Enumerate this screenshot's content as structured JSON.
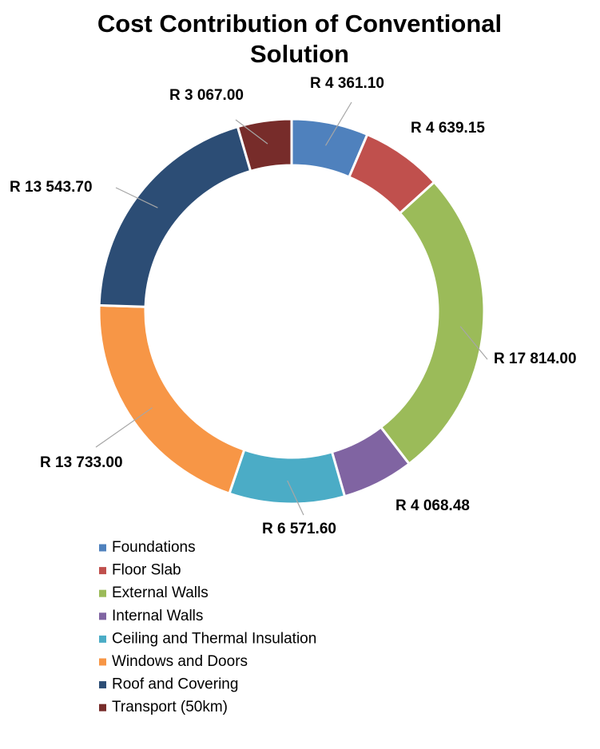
{
  "chart_data": {
    "type": "donut",
    "title": "Cost Contribution of Conventional Solution",
    "categories": [
      "Foundations",
      "Floor Slab",
      "External Walls",
      "Internal Walls",
      "Ceiling and Thermal Insulation",
      "Windows and Doors",
      "Roof and Covering",
      "Transport (50km)"
    ],
    "values": [
      4361.1,
      4639.15,
      17814.0,
      4068.48,
      6571.6,
      13733.0,
      13543.7,
      3067.0
    ],
    "value_labels": [
      "R 4 361.10",
      "R 4 639.15",
      "R 17 814.00",
      "R 4 068.48",
      "R 6 571.60",
      "R 13 733.00",
      "R 13 543.70",
      "R 3 067.00"
    ],
    "colors": [
      "#4f81bd",
      "#c0504d",
      "#9bbb59",
      "#8064a2",
      "#4bacc6",
      "#f79646",
      "#2c4d75",
      "#772c2a"
    ],
    "legend": "bottom"
  }
}
